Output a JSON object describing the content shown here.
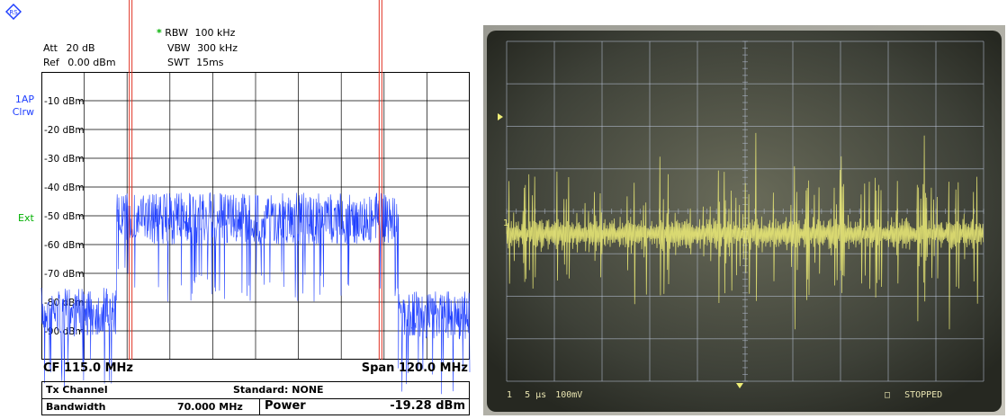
{
  "spectrum": {
    "att_label": "Att",
    "att_value": "20 dB",
    "ref_label": "Ref",
    "ref_value": "0.00 dBm",
    "rbw_label": "RBW",
    "rbw_value": "100 kHz",
    "vbw_label": "VBW",
    "vbw_value": "300 kHz",
    "swt_label": "SWT",
    "swt_value": "15ms",
    "star": "*",
    "trace_id": "1AP",
    "trace_mode": "Clrw",
    "ext": "Ext",
    "y_ticks": [
      "-10 dBm",
      "-20 dBm",
      "-30 dBm",
      "-40 dBm",
      "-50 dBm",
      "-60 dBm",
      "-70 dBm",
      "-80 dBm",
      "-90 dBm"
    ],
    "cf": "CF 115.0 MHz",
    "span": "Span 120.0 MHz",
    "tx_channel": "Tx Channel",
    "standard": "Standard:  NONE",
    "bandwidth_label": "Bandwidth",
    "bandwidth_value": "70.000 MHz",
    "power_label": "Power",
    "power_value": "-19.28 dBm",
    "trace_color": "#1f3fff",
    "marker_color": "#e03020"
  },
  "chart_data": {
    "type": "line",
    "x_range_mhz": [
      55.0,
      175.0
    ],
    "ylim": [
      0,
      -100
    ],
    "y_ticks": [
      -10,
      -20,
      -30,
      -40,
      -50,
      -60,
      -70,
      -80,
      -90
    ],
    "channel_limits_mhz": [
      80.0,
      150.0
    ],
    "series": [
      {
        "x_range_mhz": [
          55.0,
          76.0
        ],
        "level_dbm": [
          -75,
          -92
        ]
      },
      {
        "x_range_mhz": [
          76.0,
          155.0
        ],
        "level_dbm": [
          -42,
          -60
        ]
      },
      {
        "x_range_mhz": [
          155.0,
          175.0
        ],
        "level_dbm": [
          -76,
          -93
        ]
      }
    ]
  },
  "oscilloscope": {
    "channel": "1",
    "timebase": "5 μs",
    "volts": "100mV",
    "state": "STOPPED",
    "trace_color": "#f0ef78"
  }
}
